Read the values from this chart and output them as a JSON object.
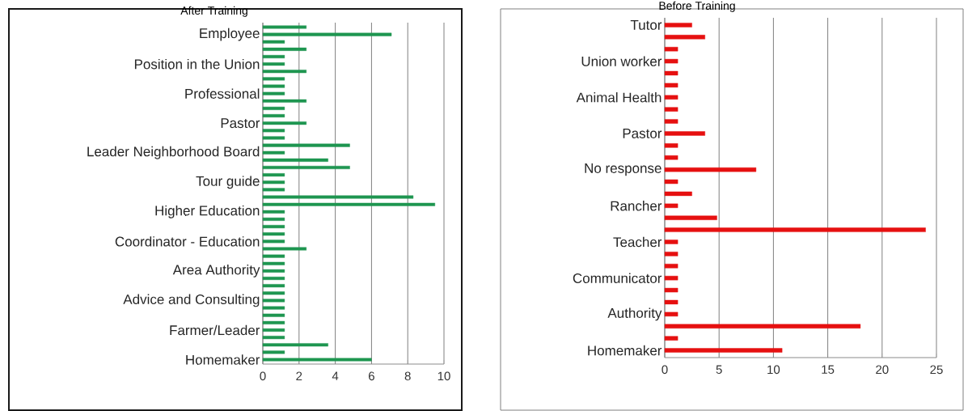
{
  "chart_data": [
    {
      "type": "bar",
      "orientation": "horizontal",
      "title": "After Training",
      "color": "#1e9650",
      "grid": "x",
      "xlim": [
        0,
        10
      ],
      "xticks": [
        0,
        2,
        4,
        6,
        8,
        10
      ],
      "categories": [
        null,
        "Employee",
        null,
        null,
        null,
        "Position in the Union",
        null,
        null,
        null,
        "Professional",
        null,
        null,
        null,
        "Pastor",
        null,
        null,
        null,
        "Leader Neighborhood Board",
        null,
        null,
        null,
        "Tour guide",
        null,
        null,
        null,
        "Higher Education",
        null,
        null,
        null,
        "Coordinator - Education",
        null,
        null,
        null,
        "Area Authority",
        null,
        null,
        null,
        "Advice and Consulting",
        null,
        null,
        null,
        "Farmer/Leader",
        null,
        null,
        null,
        "Homemaker"
      ],
      "values": [
        2.4,
        7.1,
        1.2,
        2.4,
        1.2,
        1.2,
        2.4,
        1.2,
        1.2,
        1.2,
        2.4,
        1.2,
        1.2,
        2.4,
        1.2,
        1.2,
        4.8,
        1.2,
        3.6,
        4.8,
        1.2,
        1.2,
        1.2,
        8.3,
        9.5,
        1.2,
        1.2,
        1.2,
        1.2,
        1.2,
        2.4,
        1.2,
        1.2,
        1.2,
        1.2,
        1.2,
        1.2,
        1.2,
        1.2,
        1.2,
        1.2,
        1.2,
        1.2,
        3.6,
        1.2,
        6.0
      ]
    },
    {
      "type": "bar",
      "orientation": "horizontal",
      "title": "Before Training",
      "color": "#e61010",
      "grid": "x",
      "xlim": [
        0,
        25
      ],
      "xticks": [
        0,
        5,
        10,
        15,
        20,
        25
      ],
      "categories": [
        "Tutor",
        null,
        null,
        "Union worker",
        null,
        null,
        "Animal Health",
        null,
        null,
        "Pastor",
        null,
        null,
        "No response",
        null,
        null,
        "Rancher",
        null,
        null,
        "Teacher",
        null,
        null,
        "Communicator",
        null,
        null,
        "Authority",
        null,
        null,
        "Homemaker"
      ],
      "values": [
        2.5,
        3.7,
        1.2,
        1.2,
        1.2,
        1.2,
        1.2,
        1.2,
        1.2,
        3.7,
        1.2,
        1.2,
        8.4,
        1.2,
        2.5,
        1.2,
        4.8,
        24.0,
        1.2,
        1.2,
        1.2,
        1.2,
        1.2,
        1.2,
        1.2,
        18.0,
        1.2,
        10.8
      ]
    }
  ]
}
